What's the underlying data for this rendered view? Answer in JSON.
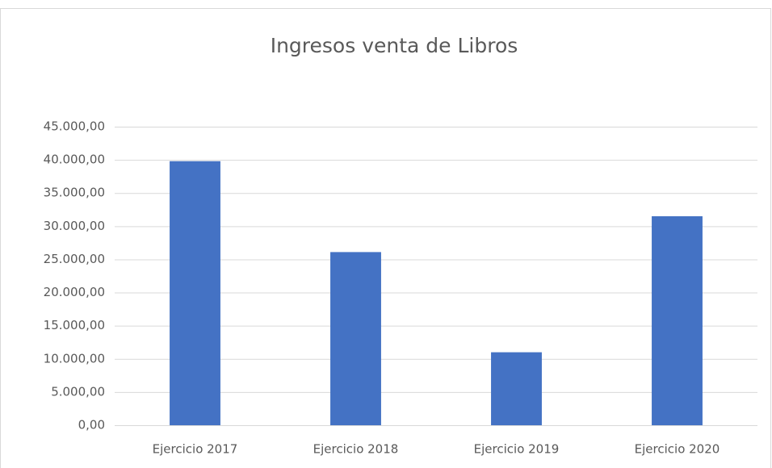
{
  "chart_data": {
    "type": "bar",
    "title": "Ingresos venta de Libros",
    "categories": [
      "Ejercicio 2017",
      "Ejercicio 2018",
      "Ejercicio 2019",
      "Ejercicio 2020"
    ],
    "values": [
      39800,
      26100,
      11000,
      31500
    ],
    "color": "#4472c4",
    "ylim": [
      0,
      45000
    ],
    "yticks": [
      {
        "value": 0,
        "label": "0,00"
      },
      {
        "value": 5000,
        "label": "5.000,00"
      },
      {
        "value": 10000,
        "label": "10.000,00"
      },
      {
        "value": 15000,
        "label": "15.000,00"
      },
      {
        "value": 20000,
        "label": "20.000,00"
      },
      {
        "value": 25000,
        "label": "25.000,00"
      },
      {
        "value": 30000,
        "label": "30.000,00"
      },
      {
        "value": 35000,
        "label": "35.000,00"
      },
      {
        "value": 40000,
        "label": "40.000,00"
      },
      {
        "value": 45000,
        "label": "45.000,00"
      }
    ],
    "grid": true
  }
}
